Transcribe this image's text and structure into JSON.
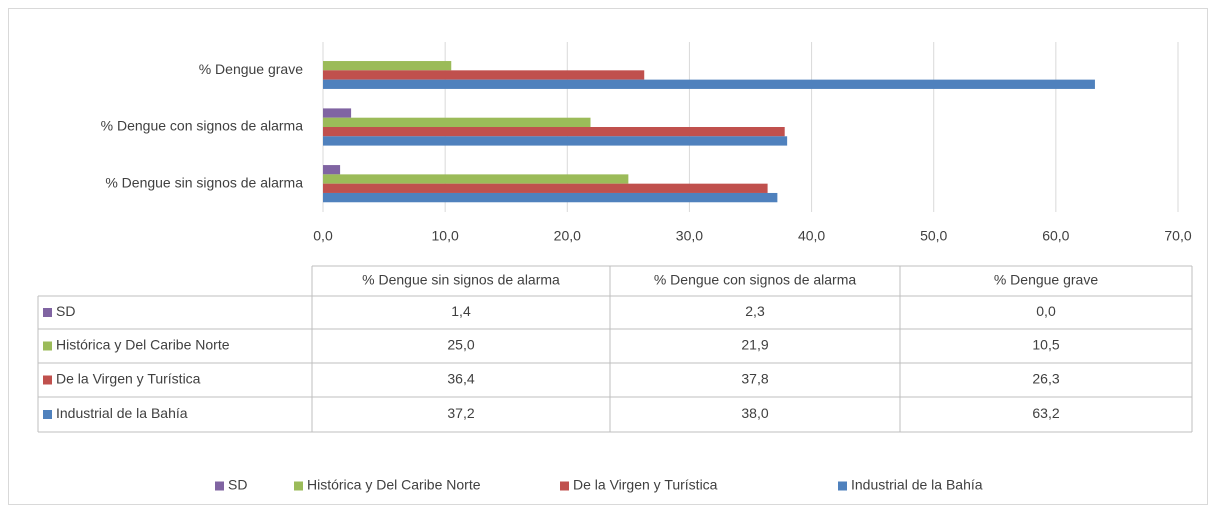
{
  "chart_data": {
    "type": "hbar",
    "categories": [
      "% Dengue sin signos de alarma",
      "% Dengue con signos de alarma",
      "% Dengue grave"
    ],
    "series": [
      {
        "name": "SD",
        "color": "#8064a2",
        "values": [
          1.4,
          2.3,
          0.0
        ],
        "value_labels": [
          "1,4",
          "2,3",
          "0,0"
        ]
      },
      {
        "name": "Histórica y Del Caribe Norte",
        "color": "#9bbb59",
        "values": [
          25.0,
          21.9,
          10.5
        ],
        "value_labels": [
          "25,0",
          "21,9",
          "10,5"
        ]
      },
      {
        "name": "De la Virgen y Turística",
        "color": "#c0504d",
        "values": [
          36.4,
          37.8,
          26.3
        ],
        "value_labels": [
          "36,4",
          "37,8",
          "26,3"
        ]
      },
      {
        "name": "Industrial de la Bahía",
        "color": "#4f81bd",
        "values": [
          37.2,
          38.0,
          63.2
        ],
        "value_labels": [
          "37,2",
          "38,0",
          "63,2"
        ]
      }
    ],
    "xlim": [
      0,
      70
    ],
    "xticks": [
      {
        "value": 0,
        "label": "0,0"
      },
      {
        "value": 10,
        "label": "10,0"
      },
      {
        "value": 20,
        "label": "20,0"
      },
      {
        "value": 30,
        "label": "30,0"
      },
      {
        "value": 40,
        "label": "40,0"
      },
      {
        "value": 50,
        "label": "50,0"
      },
      {
        "value": 60,
        "label": "60,0"
      },
      {
        "value": 70,
        "label": "70,0"
      }
    ],
    "grid": true,
    "legend": "bottom",
    "data_table": true
  }
}
